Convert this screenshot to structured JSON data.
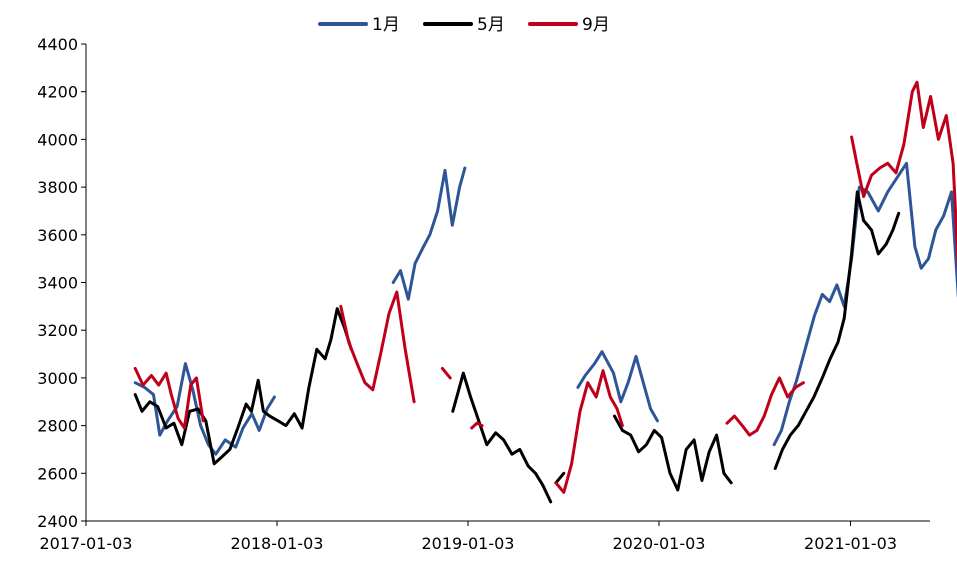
{
  "chart_data": {
    "type": "line",
    "title": "",
    "xlabel": "",
    "ylabel": "",
    "x_ticks": [
      "2017-01-03",
      "2018-01-03",
      "2019-01-03",
      "2020-01-03",
      "2021-01-03"
    ],
    "xlim": [
      "2017-01-03",
      "2021-07-30"
    ],
    "ylim": [
      2400,
      4400
    ],
    "y_ticks": [
      2400,
      2600,
      2800,
      3000,
      3200,
      3400,
      3600,
      3800,
      4000,
      4200,
      4400
    ],
    "grid": false,
    "legend": {
      "position": "top-center"
    },
    "series": [
      {
        "name": "1月",
        "color": "#2E5597",
        "segments": [
          [
            [
              "2017-04-07",
              2980
            ],
            [
              "2017-04-25",
              2960
            ],
            [
              "2017-05-12",
              2930
            ],
            [
              "2017-05-24",
              2760
            ],
            [
              "2017-06-08",
              2820
            ],
            [
              "2017-06-26",
              2880
            ],
            [
              "2017-07-12",
              3060
            ],
            [
              "2017-07-26",
              2950
            ],
            [
              "2017-08-10",
              2800
            ],
            [
              "2017-08-25",
              2720
            ],
            [
              "2017-09-08",
              2680
            ],
            [
              "2017-09-26",
              2740
            ],
            [
              "2017-10-16",
              2710
            ],
            [
              "2017-10-30",
              2790
            ],
            [
              "2017-11-16",
              2850
            ],
            [
              "2017-11-30",
              2780
            ],
            [
              "2017-12-15",
              2870
            ],
            [
              "2017-12-29",
              2920
            ]
          ],
          [
            [
              "2018-08-13",
              3400
            ],
            [
              "2018-08-27",
              3450
            ],
            [
              "2018-09-11",
              3330
            ],
            [
              "2018-09-24",
              3480
            ],
            [
              "2018-10-10",
              3550
            ],
            [
              "2018-10-22",
              3600
            ],
            [
              "2018-11-06",
              3700
            ],
            [
              "2018-11-20",
              3870
            ],
            [
              "2018-12-04",
              3640
            ],
            [
              "2018-12-18",
              3800
            ],
            [
              "2018-12-28",
              3880
            ]
          ],
          [
            [
              "2019-08-01",
              2960
            ],
            [
              "2019-08-15",
              3010
            ],
            [
              "2019-09-02",
              3060
            ],
            [
              "2019-09-16",
              3110
            ],
            [
              "2019-10-08",
              3020
            ],
            [
              "2019-10-22",
              2900
            ],
            [
              "2019-11-05",
              2980
            ],
            [
              "2019-11-20",
              3090
            ],
            [
              "2019-12-04",
              2980
            ],
            [
              "2019-12-18",
              2870
            ],
            [
              "2019-12-31",
              2820
            ]
          ],
          [
            [
              "2020-08-10",
              2720
            ],
            [
              "2020-08-24",
              2780
            ],
            [
              "2020-09-08",
              2900
            ],
            [
              "2020-09-22",
              2990
            ],
            [
              "2020-10-12",
              3150
            ],
            [
              "2020-10-26",
              3260
            ],
            [
              "2020-11-10",
              3350
            ],
            [
              "2020-11-24",
              3320
            ],
            [
              "2020-12-08",
              3390
            ],
            [
              "2020-12-22",
              3300
            ],
            [
              "2021-01-05",
              3500
            ],
            [
              "2021-01-20",
              3800
            ],
            [
              "2021-02-05",
              3780
            ],
            [
              "2021-02-25",
              3700
            ],
            [
              "2021-03-15",
              3780
            ],
            [
              "2021-04-05",
              3850
            ],
            [
              "2021-04-20",
              3900
            ],
            [
              "2021-05-06",
              3550
            ],
            [
              "2021-05-18",
              3460
            ],
            [
              "2021-06-01",
              3500
            ],
            [
              "2021-06-15",
              3620
            ],
            [
              "2021-06-30",
              3680
            ],
            [
              "2021-07-15",
              3780
            ],
            [
              "2021-07-28",
              3340
            ]
          ]
        ]
      },
      {
        "name": "5月",
        "color": "#000000",
        "segments": [
          [
            [
              "2017-04-07",
              2930
            ],
            [
              "2017-04-20",
              2860
            ],
            [
              "2017-05-05",
              2900
            ],
            [
              "2017-05-20",
              2880
            ],
            [
              "2017-06-05",
              2790
            ],
            [
              "2017-06-20",
              2810
            ],
            [
              "2017-07-05",
              2720
            ],
            [
              "2017-07-20",
              2860
            ],
            [
              "2017-08-05",
              2870
            ],
            [
              "2017-08-20",
              2820
            ],
            [
              "2017-09-05",
              2640
            ],
            [
              "2017-09-20",
              2670
            ],
            [
              "2017-10-05",
              2700
            ],
            [
              "2017-10-20",
              2790
            ],
            [
              "2017-11-05",
              2890
            ],
            [
              "2017-11-15",
              2860
            ],
            [
              "2017-11-28",
              2990
            ],
            [
              "2017-12-08",
              2860
            ],
            [
              "2017-12-20",
              2840
            ],
            [
              "2018-01-05",
              2820
            ],
            [
              "2018-01-20",
              2800
            ],
            [
              "2018-02-05",
              2850
            ],
            [
              "2018-02-20",
              2790
            ],
            [
              "2018-03-05",
              2960
            ],
            [
              "2018-03-20",
              3120
            ],
            [
              "2018-04-05",
              3080
            ],
            [
              "2018-04-16",
              3160
            ],
            [
              "2018-04-28",
              3290
            ],
            [
              "2018-05-12",
              3210
            ],
            [
              "2018-05-25",
              3120
            ]
          ],
          [
            [
              "2018-12-05",
              2860
            ],
            [
              "2018-12-15",
              2940
            ],
            [
              "2018-12-25",
              3020
            ],
            [
              "2019-01-08",
              2920
            ],
            [
              "2019-01-22",
              2830
            ],
            [
              "2019-02-08",
              2720
            ],
            [
              "2019-02-25",
              2770
            ],
            [
              "2019-03-12",
              2740
            ],
            [
              "2019-03-28",
              2680
            ],
            [
              "2019-04-12",
              2700
            ],
            [
              "2019-04-28",
              2630
            ],
            [
              "2019-05-12",
              2600
            ],
            [
              "2019-05-26",
              2550
            ],
            [
              "2019-06-10",
              2480
            ]
          ],
          [
            [
              "2019-06-20",
              2560
            ],
            [
              "2019-07-05",
              2600
            ]
          ],
          [
            [
              "2019-10-10",
              2840
            ],
            [
              "2019-10-25",
              2780
            ],
            [
              "2019-11-10",
              2760
            ],
            [
              "2019-11-25",
              2690
            ],
            [
              "2019-12-10",
              2720
            ],
            [
              "2019-12-25",
              2780
            ],
            [
              "2020-01-08",
              2750
            ],
            [
              "2020-01-24",
              2600
            ],
            [
              "2020-02-08",
              2530
            ],
            [
              "2020-02-24",
              2700
            ],
            [
              "2020-03-10",
              2740
            ],
            [
              "2020-03-25",
              2570
            ],
            [
              "2020-04-08",
              2690
            ],
            [
              "2020-04-22",
              2760
            ],
            [
              "2020-05-06",
              2600
            ],
            [
              "2020-05-20",
              2560
            ]
          ],
          [
            [
              "2020-08-12",
              2620
            ],
            [
              "2020-08-26",
              2700
            ],
            [
              "2020-09-10",
              2760
            ],
            [
              "2020-09-25",
              2800
            ],
            [
              "2020-10-10",
              2860
            ],
            [
              "2020-10-25",
              2920
            ],
            [
              "2020-11-10",
              3000
            ],
            [
              "2020-11-25",
              3080
            ],
            [
              "2020-12-10",
              3150
            ],
            [
              "2020-12-22",
              3250
            ],
            [
              "2021-01-05",
              3520
            ],
            [
              "2021-01-16",
              3780
            ],
            [
              "2021-01-28",
              3660
            ],
            [
              "2021-02-12",
              3620
            ],
            [
              "2021-02-25",
              3520
            ],
            [
              "2021-03-12",
              3560
            ],
            [
              "2021-03-25",
              3620
            ],
            [
              "2021-04-05",
              3690
            ]
          ]
        ]
      },
      {
        "name": "9月",
        "color": "#C0001A",
        "segments": [
          [
            [
              "2017-04-07",
              3040
            ],
            [
              "2017-04-22",
              2970
            ],
            [
              "2017-05-08",
              3010
            ],
            [
              "2017-05-22",
              2970
            ],
            [
              "2017-06-05",
              3020
            ],
            [
              "2017-06-15",
              2930
            ],
            [
              "2017-06-28",
              2830
            ],
            [
              "2017-07-10",
              2790
            ],
            [
              "2017-07-22",
              2970
            ],
            [
              "2017-08-02",
              3000
            ],
            [
              "2017-08-15",
              2820
            ]
          ],
          [
            [
              "2018-05-05",
              3300
            ],
            [
              "2018-05-20",
              3150
            ],
            [
              "2018-06-05",
              3060
            ],
            [
              "2018-06-20",
              2980
            ],
            [
              "2018-07-05",
              2950
            ],
            [
              "2018-07-20",
              3100
            ],
            [
              "2018-08-05",
              3270
            ],
            [
              "2018-08-20",
              3360
            ],
            [
              "2018-09-05",
              3120
            ],
            [
              "2018-09-22",
              2900
            ]
          ],
          [
            [
              "2018-11-15",
              3040
            ],
            [
              "2018-11-30",
              3000
            ]
          ],
          [
            [
              "2019-01-10",
              2790
            ],
            [
              "2019-01-20",
              2810
            ],
            [
              "2019-01-30",
              2800
            ]
          ],
          [
            [
              "2019-06-20",
              2560
            ],
            [
              "2019-07-05",
              2520
            ],
            [
              "2019-07-20",
              2640
            ],
            [
              "2019-08-05",
              2860
            ],
            [
              "2019-08-20",
              2980
            ],
            [
              "2019-09-05",
              2920
            ],
            [
              "2019-09-18",
              3030
            ],
            [
              "2019-10-02",
              2920
            ],
            [
              "2019-10-15",
              2870
            ],
            [
              "2019-10-25",
              2800
            ]
          ],
          [
            [
              "2020-05-12",
              2810
            ],
            [
              "2020-05-26",
              2840
            ],
            [
              "2020-06-10",
              2800
            ],
            [
              "2020-06-24",
              2760
            ],
            [
              "2020-07-08",
              2780
            ],
            [
              "2020-07-22",
              2840
            ],
            [
              "2020-08-05",
              2930
            ],
            [
              "2020-08-20",
              3000
            ],
            [
              "2020-09-05",
              2920
            ],
            [
              "2020-09-20",
              2960
            ],
            [
              "2020-10-05",
              2980
            ]
          ],
          [
            [
              "2021-01-05",
              4010
            ],
            [
              "2021-01-15",
              3900
            ],
            [
              "2021-01-28",
              3760
            ],
            [
              "2021-02-12",
              3850
            ],
            [
              "2021-02-28",
              3880
            ],
            [
              "2021-03-15",
              3900
            ],
            [
              "2021-03-31",
              3860
            ],
            [
              "2021-04-15",
              3980
            ],
            [
              "2021-05-01",
              4200
            ],
            [
              "2021-05-10",
              4240
            ],
            [
              "2021-05-22",
              4050
            ],
            [
              "2021-06-05",
              4180
            ],
            [
              "2021-06-20",
              4000
            ],
            [
              "2021-07-05",
              4100
            ],
            [
              "2021-07-18",
              3900
            ],
            [
              "2021-07-28",
              3460
            ]
          ]
        ]
      }
    ]
  }
}
